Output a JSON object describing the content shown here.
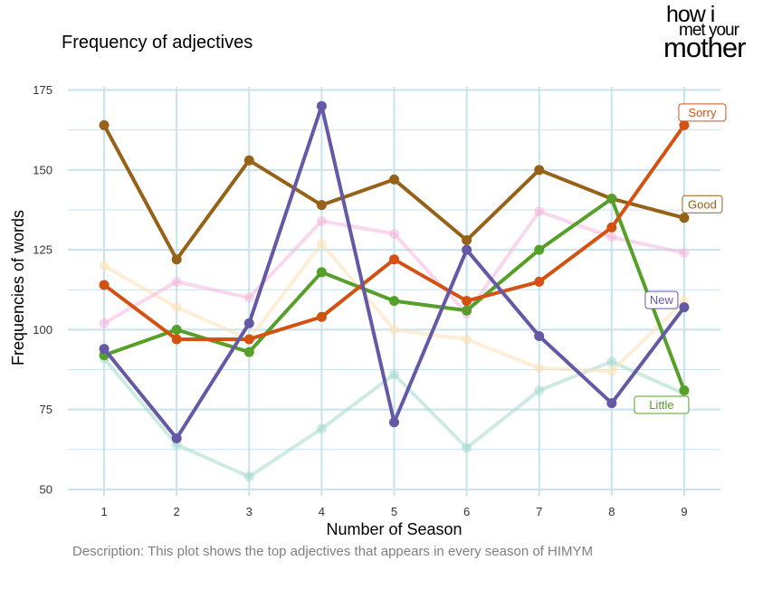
{
  "header": {
    "title": "Frequency of adjectives",
    "caption": "Description: This plot shows the top adjectives that appears in every season of HIMYM",
    "logo_lines": [
      "how i",
      "met your",
      "mother"
    ]
  },
  "chart_data": {
    "type": "line",
    "title": "Frequency of adjectives",
    "xlabel": "Number of Season",
    "ylabel": "Frequencies of words",
    "x": [
      1,
      2,
      3,
      4,
      5,
      6,
      7,
      8,
      9
    ],
    "xlim": [
      0.5,
      9.5
    ],
    "ylim": [
      48,
      176
    ],
    "yticks": [
      50,
      75,
      100,
      125,
      150,
      175
    ],
    "xticks": [
      1,
      2,
      3,
      4,
      5,
      6,
      7,
      8,
      9
    ],
    "grid": true,
    "legend": "none",
    "series": [
      {
        "values": [
          91,
          64,
          54,
          69,
          86,
          63,
          81,
          90,
          80
        ],
        "color": "#a6d8ce",
        "highlight": false
      },
      {
        "values": [
          120,
          107,
          97,
          127,
          100,
          97,
          88,
          87,
          109
        ],
        "color": "#fbe2b6",
        "highlight": false
      },
      {
        "values": [
          102,
          115,
          110,
          134,
          130,
          105,
          137,
          129,
          124
        ],
        "color": "#f4b6dc",
        "highlight": false
      },
      {
        "name": "Good",
        "values": [
          164,
          122,
          153,
          139,
          147,
          128,
          150,
          141,
          135
        ],
        "color": "#966218",
        "highlight": true
      },
      {
        "name": "Little",
        "values": [
          92,
          100,
          93,
          118,
          109,
          106,
          125,
          141,
          81
        ],
        "color": "#56a02a",
        "highlight": true
      },
      {
        "name": "Sorry",
        "values": [
          114,
          97,
          97,
          104,
          122,
          109,
          115,
          132,
          164
        ],
        "color": "#d35212",
        "highlight": true
      },
      {
        "name": "New",
        "values": [
          94,
          66,
          102,
          170,
          71,
          125,
          98,
          77,
          107
        ],
        "color": "#6559a6",
        "highlight": true
      }
    ]
  }
}
